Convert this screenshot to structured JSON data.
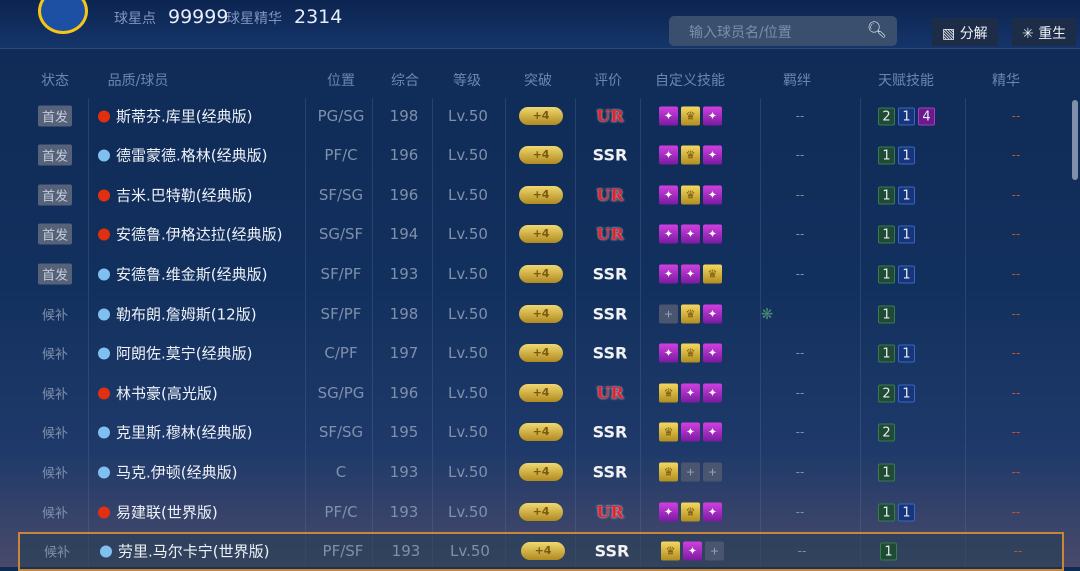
{
  "header": {
    "points_label": "球星点",
    "points": "99999",
    "essence_label": "球星精华",
    "essence": "2314",
    "search_placeholder": "输入球员名/位置",
    "decompose": "分解",
    "rebirth": "重生"
  },
  "columns": [
    "状态",
    "品质/球员",
    "位置",
    "综合",
    "等级",
    "突破",
    "评价",
    "自定义技能",
    "羁绊",
    "天赋技能",
    "精华"
  ],
  "colors": {
    "ur": "#e8202a",
    "ssr_dot": "#7fc0f0",
    "ur_dot": "#e03010",
    "selected_border": "#c9863a"
  },
  "rows": [
    {
      "status": "首发",
      "starter": true,
      "name": "斯蒂芬.库里(经典版)",
      "pos": "PG/SG",
      "ovr": "198",
      "lv": "Lv.50",
      "bk": "+4",
      "rating": "UR",
      "skills": [
        "p",
        "g",
        "p"
      ],
      "bond": "--",
      "talents": [
        [
          "2",
          "g"
        ],
        [
          "1",
          "b"
        ],
        [
          "4",
          "p"
        ]
      ],
      "ess": "--"
    },
    {
      "status": "首发",
      "starter": true,
      "name": "德雷蒙德.格林(经典版)",
      "pos": "PF/C",
      "ovr": "196",
      "lv": "Lv.50",
      "bk": "+4",
      "rating": "SSR",
      "skills": [
        "p",
        "g",
        "p"
      ],
      "bond": "--",
      "talents": [
        [
          "1",
          "g"
        ],
        [
          "1",
          "b"
        ]
      ],
      "ess": "--"
    },
    {
      "status": "首发",
      "starter": true,
      "name": "吉米.巴特勒(经典版)",
      "pos": "SF/SG",
      "ovr": "196",
      "lv": "Lv.50",
      "bk": "+4",
      "rating": "UR",
      "skills": [
        "p",
        "g",
        "p"
      ],
      "bond": "--",
      "talents": [
        [
          "1",
          "g"
        ],
        [
          "1",
          "b"
        ]
      ],
      "ess": "--"
    },
    {
      "status": "首发",
      "starter": true,
      "name": "安德鲁.伊格达拉(经典版)",
      "pos": "SG/SF",
      "ovr": "194",
      "lv": "Lv.50",
      "bk": "+4",
      "rating": "UR",
      "skills": [
        "p",
        "p",
        "p"
      ],
      "bond": "--",
      "talents": [
        [
          "1",
          "g"
        ],
        [
          "1",
          "b"
        ]
      ],
      "ess": "--"
    },
    {
      "status": "首发",
      "starter": true,
      "name": "安德鲁.维金斯(经典版)",
      "pos": "SF/PF",
      "ovr": "193",
      "lv": "Lv.50",
      "bk": "+4",
      "rating": "SSR",
      "skills": [
        "p",
        "p",
        "g"
      ],
      "bond": "--",
      "talents": [
        [
          "1",
          "g"
        ],
        [
          "1",
          "b"
        ]
      ],
      "ess": "--"
    },
    {
      "status": "候补",
      "starter": false,
      "name": "勒布朗.詹姆斯(12版)",
      "pos": "SF/PF",
      "ovr": "198",
      "lv": "Lv.50",
      "bk": "+4",
      "rating": "SSR",
      "skills": [
        "e",
        "g",
        "p"
      ],
      "bond": "",
      "bond_icon": "bond-icon",
      "talents": [
        [
          "1",
          "g"
        ]
      ],
      "ess": "--"
    },
    {
      "status": "候补",
      "starter": false,
      "name": "阿朗佐.莫宁(经典版)",
      "pos": "C/PF",
      "ovr": "197",
      "lv": "Lv.50",
      "bk": "+4",
      "rating": "SSR",
      "skills": [
        "p",
        "g",
        "p"
      ],
      "bond": "--",
      "talents": [
        [
          "1",
          "g"
        ],
        [
          "1",
          "b"
        ]
      ],
      "ess": "--"
    },
    {
      "status": "候补",
      "starter": false,
      "name": "林书豪(高光版)",
      "pos": "SG/PG",
      "ovr": "196",
      "lv": "Lv.50",
      "bk": "+4",
      "rating": "UR",
      "skills": [
        "g",
        "p",
        "p"
      ],
      "bond": "--",
      "talents": [
        [
          "2",
          "g"
        ],
        [
          "1",
          "b"
        ]
      ],
      "ess": "--"
    },
    {
      "status": "候补",
      "starter": false,
      "name": "克里斯.穆林(经典版)",
      "pos": "SF/SG",
      "ovr": "195",
      "lv": "Lv.50",
      "bk": "+4",
      "rating": "SSR",
      "skills": [
        "g",
        "p",
        "p"
      ],
      "bond": "--",
      "talents": [
        [
          "2",
          "g"
        ]
      ],
      "ess": "--"
    },
    {
      "status": "候补",
      "starter": false,
      "name": "马克.伊顿(经典版)",
      "pos": "C",
      "ovr": "193",
      "lv": "Lv.50",
      "bk": "+4",
      "rating": "SSR",
      "skills": [
        "g",
        "e",
        "e"
      ],
      "bond": "--",
      "talents": [
        [
          "1",
          "g"
        ]
      ],
      "ess": "--"
    },
    {
      "status": "候补",
      "starter": false,
      "name": "易建联(世界版)",
      "pos": "PF/C",
      "ovr": "193",
      "lv": "Lv.50",
      "bk": "+4",
      "rating": "UR",
      "skills": [
        "p",
        "g",
        "p"
      ],
      "bond": "--",
      "talents": [
        [
          "1",
          "g"
        ],
        [
          "1",
          "b"
        ]
      ],
      "ess": "--"
    },
    {
      "status": "候补",
      "starter": false,
      "name": "劳里.马尔卡宁(世界版)",
      "pos": "PF/SF",
      "ovr": "193",
      "lv": "Lv.50",
      "bk": "+4",
      "rating": "SSR",
      "skills": [
        "g",
        "p",
        "e"
      ],
      "bond": "--",
      "talents": [
        [
          "1",
          "g"
        ]
      ],
      "ess": "--",
      "selected": true
    }
  ]
}
